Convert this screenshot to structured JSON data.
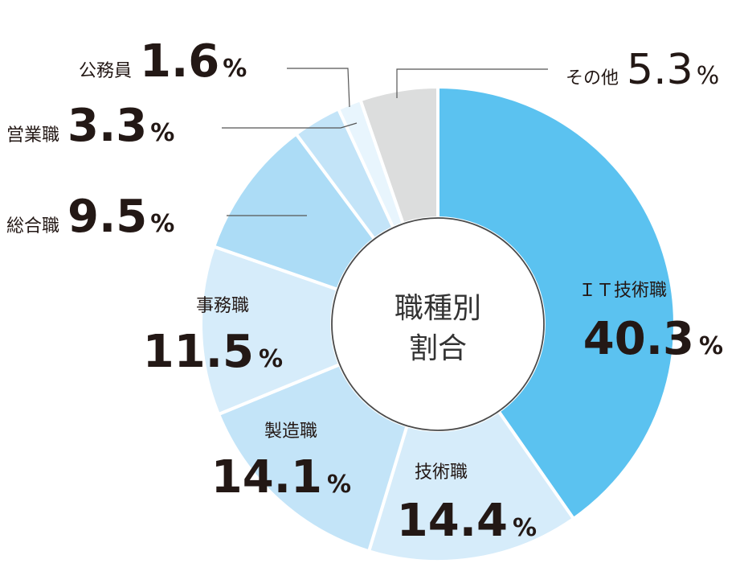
{
  "chart_data": {
    "type": "pie",
    "donut": true,
    "center_title": [
      "職種別",
      "割合"
    ],
    "slices": [
      {
        "label": "ＩＴ技術職",
        "value": 40.3,
        "color": "#5bc2f0"
      },
      {
        "label": "技術職",
        "value": 14.4,
        "color": "#d6ecfa"
      },
      {
        "label": "製造職",
        "value": 14.1,
        "color": "#c3e4f8"
      },
      {
        "label": "事務職",
        "value": 11.5,
        "color": "#d6ecfa"
      },
      {
        "label": "総合職",
        "value": 9.5,
        "color": "#acdcf6"
      },
      {
        "label": "営業職",
        "value": 3.3,
        "color": "#c3e4f8"
      },
      {
        "label": "公務員",
        "value": 1.6,
        "color": "#e8f5fd"
      },
      {
        "label": "その他",
        "value": 5.3,
        "color": "#dcdddd"
      }
    ],
    "value_suffix": "%",
    "start_angle": "12 o'clock",
    "direction": "clockwise",
    "legend": "none"
  }
}
